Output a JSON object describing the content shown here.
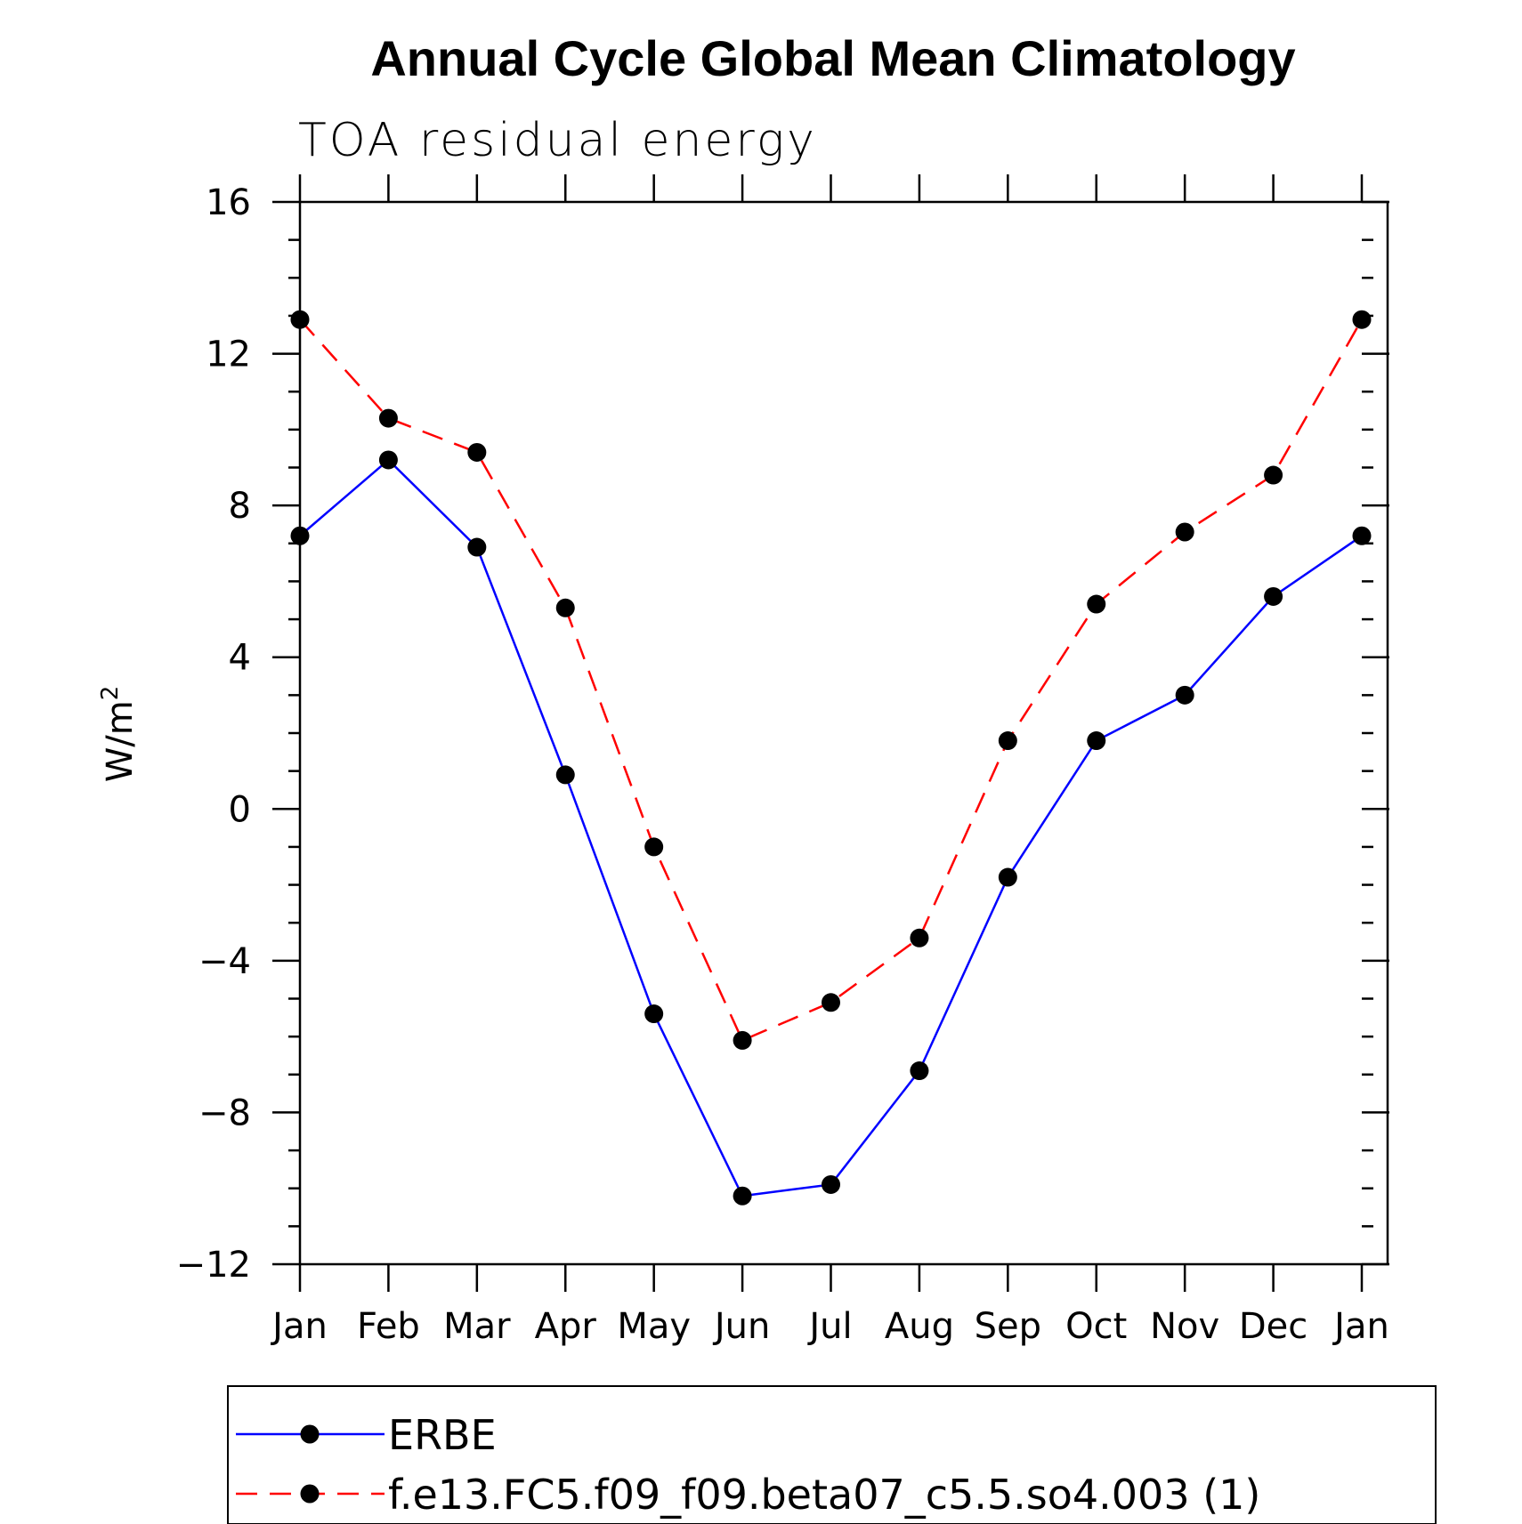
{
  "chart_data": {
    "type": "line",
    "title": "Annual Cycle Global Mean Climatology",
    "subtitle": "TOA residual energy",
    "ylabel_base": "W/m",
    "ylabel_sup": "2",
    "categories": [
      "Jan",
      "Feb",
      "Mar",
      "Apr",
      "May",
      "Jun",
      "Jul",
      "Aug",
      "Sep",
      "Oct",
      "Nov",
      "Dec",
      "Jan"
    ],
    "ylim": [
      -12,
      16
    ],
    "yticks": [
      16,
      12,
      8,
      4,
      0,
      -4,
      -8,
      -12
    ],
    "ytick_labels": [
      "16",
      "12",
      "8",
      "4",
      "0",
      "−4",
      "−8",
      "−12"
    ],
    "grid": false,
    "legend_position": "bottom",
    "series": [
      {
        "name": "ERBE",
        "color": "#0000ff",
        "dash": "solid",
        "marker": "filled-circle",
        "values": [
          7.2,
          9.2,
          6.9,
          0.9,
          -5.4,
          -10.2,
          -9.9,
          -6.9,
          -1.8,
          1.8,
          3.0,
          5.6,
          7.2
        ]
      },
      {
        "name": "f.e13.FC5.f09_f09.beta07_c5.5.so4.003 (1)",
        "color": "#ff0000",
        "dash": "dashed",
        "marker": "filled-circle",
        "values": [
          12.9,
          10.3,
          9.4,
          5.3,
          -1.0,
          -6.1,
          -5.1,
          -3.4,
          1.8,
          5.4,
          7.3,
          8.8,
          12.9
        ]
      }
    ]
  }
}
